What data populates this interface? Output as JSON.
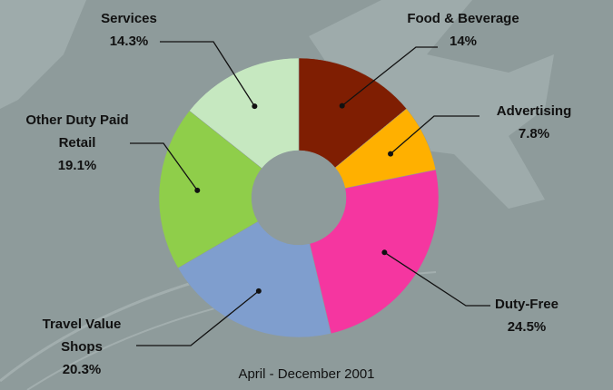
{
  "chart_data": {
    "type": "donut",
    "subtitle": "April - December 2001",
    "categories": [
      "Food & Beverage",
      "Advertising",
      "Duty-Free",
      "Travel Value Shops",
      "Other Duty Paid Retail",
      "Services"
    ],
    "values": [
      14,
      7.8,
      24.5,
      20.3,
      19.1,
      14.3
    ],
    "value_labels": [
      "14%",
      "7.8%",
      "24.5%",
      "20.3%",
      "19.1%",
      "14.3%"
    ],
    "colors": [
      "#7f1e02",
      "#ffb000",
      "#f536a0",
      "#7f9ece",
      "#8fce4a",
      "#c6e8c0"
    ]
  }
}
